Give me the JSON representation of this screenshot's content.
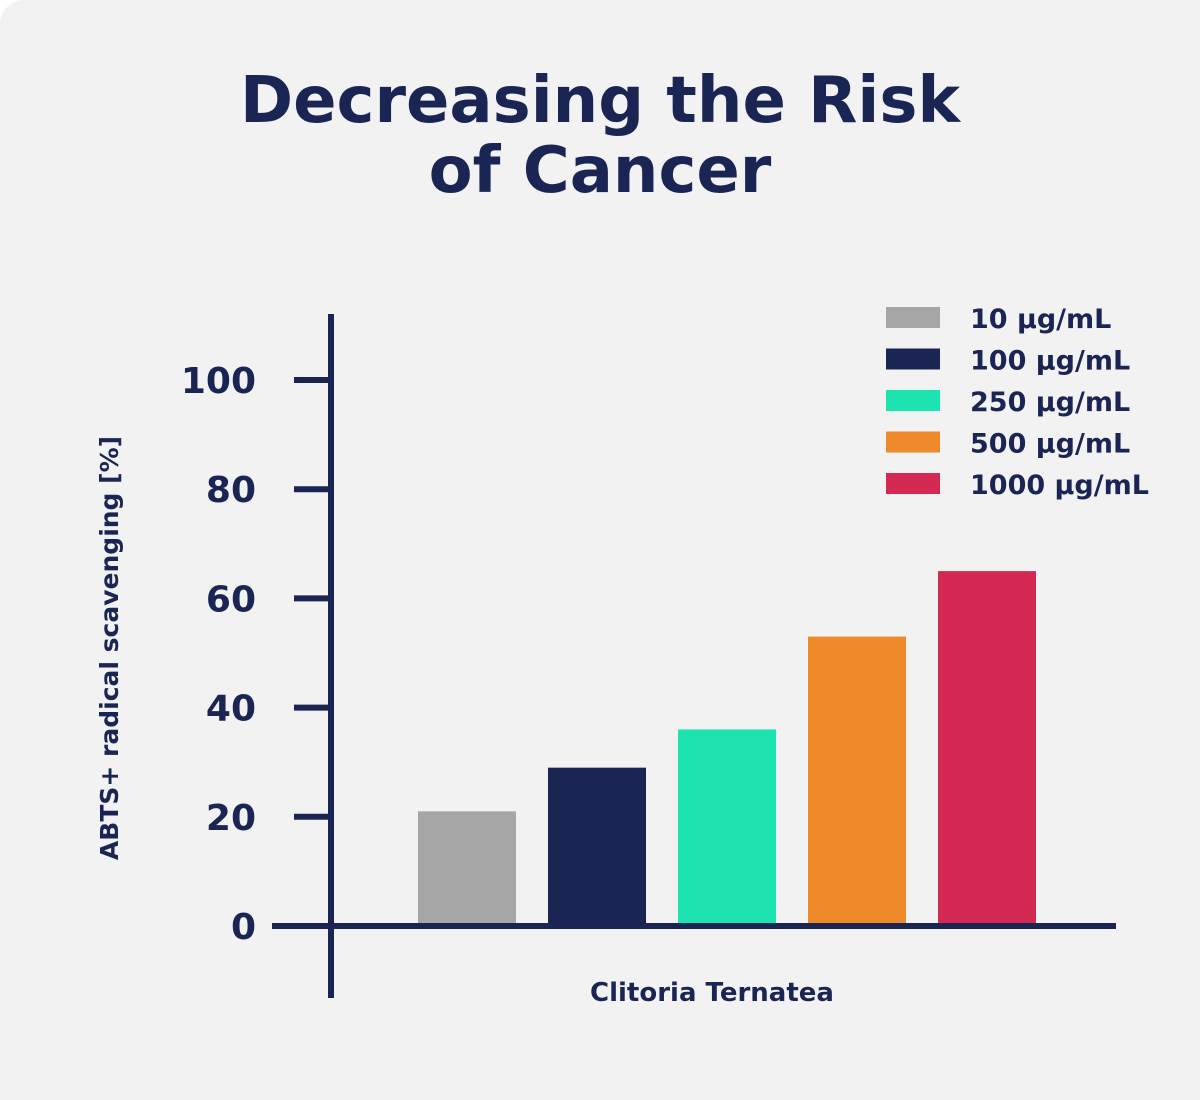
{
  "title": {
    "line1": "Decreasing the Risk",
    "line2": "of Cancer"
  },
  "colors": {
    "background": "#f2f2f3",
    "axis": "#1b2554",
    "text": "#1b2554"
  },
  "chart_data": {
    "type": "bar",
    "title": "Decreasing the Risk of Cancer",
    "xlabel": "Clitoria Ternatea",
    "ylabel": "ABTS+ radical scavenging [%]",
    "categories": [
      "Clitoria Ternatea"
    ],
    "ylim": [
      0,
      110
    ],
    "yticks": [
      0,
      20,
      40,
      60,
      80,
      100
    ],
    "grid": false,
    "legend_position": "top-right",
    "series": [
      {
        "name": "10 µg/mL",
        "color": "#a6a6a6",
        "values": [
          21
        ]
      },
      {
        "name": "100 µg/mL",
        "color": "#1b2554",
        "values": [
          29
        ]
      },
      {
        "name": "250 µg/mL",
        "color": "#1de3b0",
        "values": [
          36
        ]
      },
      {
        "name": "500 µg/mL",
        "color": "#ef8a2a",
        "values": [
          53
        ]
      },
      {
        "name": "1000 µg/mL",
        "color": "#d42953",
        "values": [
          65
        ]
      }
    ]
  }
}
